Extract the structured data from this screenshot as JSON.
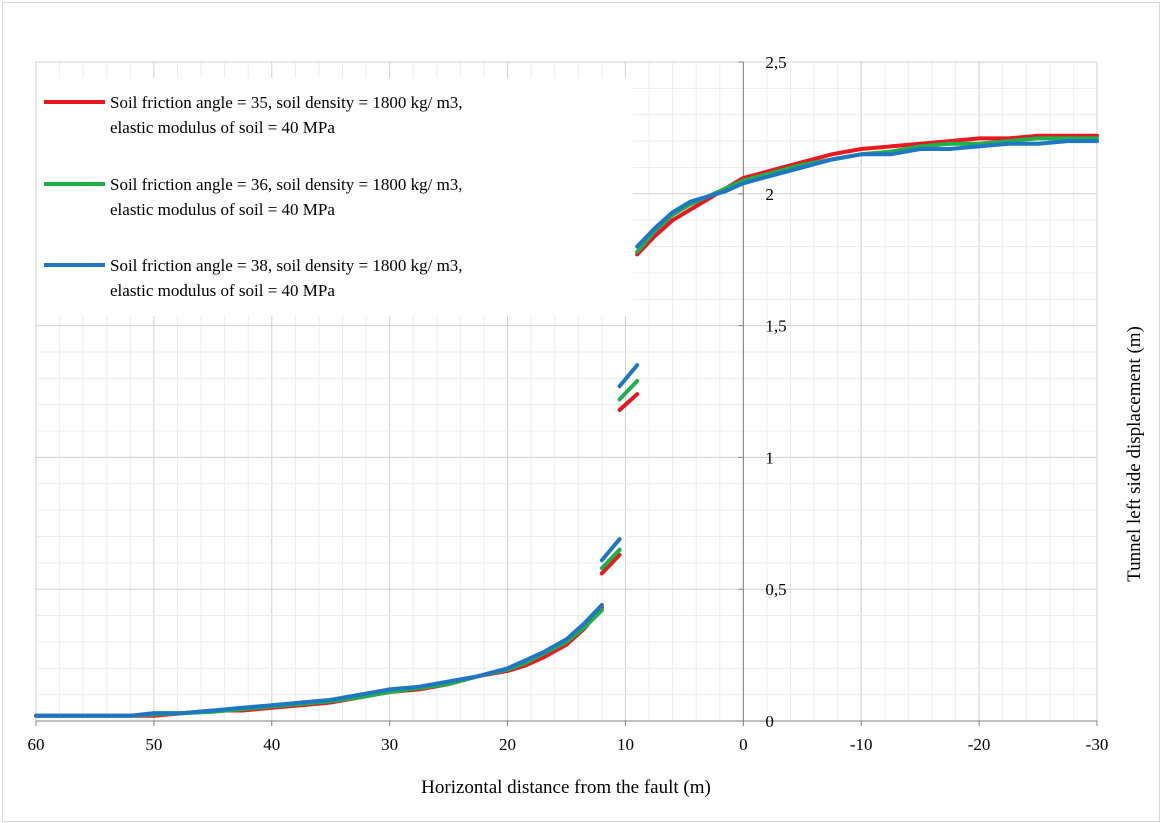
{
  "chart_data": {
    "type": "line",
    "title": "",
    "xlabel": "Horizontal distance from the fault (m)",
    "ylabel": "Tunnel left  side displacement  (m)",
    "xlim": [
      60,
      -30
    ],
    "ylim": [
      0,
      2.5
    ],
    "x_ticks": [
      "60",
      "50",
      "40",
      "30",
      "20",
      "10",
      "0",
      "-10",
      "-20",
      "-30"
    ],
    "y_ticks": [
      "0",
      "0,5",
      "1",
      "1,5",
      "2",
      "2,5"
    ],
    "grid": true,
    "legend_position": "top-left",
    "series": [
      {
        "name": "Soil friction angle = 35, soil density = 1800 kg/ m3, elastic modulus of soil = 40 MPa",
        "legend_lines": [
          "Soil friction angle = 35, soil density = 1800 kg/ m3,",
          "elastic modulus of soil = 40 MPa"
        ],
        "color": "#e8181e",
        "segments": [
          [
            [
              60,
              0.02
            ],
            [
              55,
              0.02
            ],
            [
              52,
              0.02
            ],
            [
              50,
              0.02
            ],
            [
              47.5,
              0.03
            ],
            [
              45,
              0.04
            ],
            [
              42.5,
              0.04
            ],
            [
              40,
              0.05
            ],
            [
              37.5,
              0.06
            ],
            [
              35,
              0.07
            ],
            [
              32.5,
              0.09
            ],
            [
              30,
              0.11
            ],
            [
              27.5,
              0.12
            ],
            [
              25,
              0.14
            ],
            [
              22.5,
              0.17
            ],
            [
              20,
              0.19
            ],
            [
              18.5,
              0.21
            ],
            [
              17,
              0.24
            ],
            [
              15,
              0.29
            ],
            [
              13.5,
              0.35
            ],
            [
              12,
              0.43
            ]
          ],
          [
            [
              12,
              0.56
            ],
            [
              10.5,
              0.63
            ]
          ],
          [
            [
              10.5,
              1.18
            ],
            [
              9,
              1.24
            ]
          ],
          [
            [
              9,
              1.77
            ],
            [
              7.5,
              1.84
            ],
            [
              6,
              1.9
            ],
            [
              4.5,
              1.94
            ],
            [
              3,
              1.98
            ],
            [
              1.5,
              2.02
            ],
            [
              0,
              2.06
            ],
            [
              -2.5,
              2.09
            ],
            [
              -5,
              2.12
            ],
            [
              -7.5,
              2.15
            ],
            [
              -10,
              2.17
            ],
            [
              -12.5,
              2.18
            ],
            [
              -15,
              2.19
            ],
            [
              -17.5,
              2.2
            ],
            [
              -20,
              2.21
            ],
            [
              -22.5,
              2.21
            ],
            [
              -25,
              2.22
            ],
            [
              -27.5,
              2.22
            ],
            [
              -30,
              2.22
            ]
          ]
        ]
      },
      {
        "name": "Soil friction angle = 36, soil density = 1800 kg/ m3, elastic modulus of soil = 40 MPa",
        "legend_lines": [
          "Soil friction angle = 36, soil density = 1800 kg/ m3,",
          "elastic modulus of soil = 40 MPa"
        ],
        "color": "#1fb04a",
        "segments": [
          [
            [
              60,
              0.02
            ],
            [
              55,
              0.02
            ],
            [
              52,
              0.02
            ],
            [
              50,
              0.025
            ],
            [
              47.5,
              0.03
            ],
            [
              45,
              0.035
            ],
            [
              42.5,
              0.045
            ],
            [
              40,
              0.055
            ],
            [
              37.5,
              0.065
            ],
            [
              35,
              0.075
            ],
            [
              32.5,
              0.09
            ],
            [
              30,
              0.11
            ],
            [
              27.5,
              0.125
            ],
            [
              25,
              0.14
            ],
            [
              22.5,
              0.17
            ],
            [
              20,
              0.195
            ],
            [
              18.5,
              0.22
            ],
            [
              17,
              0.255
            ],
            [
              15,
              0.3
            ],
            [
              13.5,
              0.355
            ],
            [
              12,
              0.42
            ]
          ],
          [
            [
              12,
              0.58
            ],
            [
              10.5,
              0.65
            ]
          ],
          [
            [
              10.5,
              1.22
            ],
            [
              9,
              1.29
            ]
          ],
          [
            [
              9,
              1.78
            ],
            [
              7.5,
              1.86
            ],
            [
              6,
              1.92
            ],
            [
              4.5,
              1.96
            ],
            [
              3,
              1.99
            ],
            [
              1.5,
              2.02
            ],
            [
              0,
              2.05
            ],
            [
              -2.5,
              2.08
            ],
            [
              -5,
              2.11
            ],
            [
              -7.5,
              2.13
            ],
            [
              -10,
              2.15
            ],
            [
              -12.5,
              2.16
            ],
            [
              -15,
              2.18
            ],
            [
              -17.5,
              2.19
            ],
            [
              -20,
              2.19
            ],
            [
              -22.5,
              2.2
            ],
            [
              -25,
              2.21
            ],
            [
              -27.5,
              2.21
            ],
            [
              -30,
              2.21
            ]
          ]
        ]
      },
      {
        "name": "Soil friction angle = 38, soil density = 1800 kg/ m3, elastic modulus of soil = 40 MPa",
        "legend_lines": [
          "Soil friction angle = 38, soil density = 1800 kg/ m3,",
          "elastic modulus of soil = 40 MPa"
        ],
        "color": "#1f77c4",
        "segments": [
          [
            [
              60,
              0.02
            ],
            [
              55,
              0.02
            ],
            [
              52,
              0.02
            ],
            [
              50,
              0.03
            ],
            [
              47.5,
              0.03
            ],
            [
              45,
              0.04
            ],
            [
              42.5,
              0.05
            ],
            [
              40,
              0.06
            ],
            [
              37.5,
              0.07
            ],
            [
              35,
              0.08
            ],
            [
              32.5,
              0.1
            ],
            [
              30,
              0.12
            ],
            [
              27.5,
              0.13
            ],
            [
              25,
              0.15
            ],
            [
              22.5,
              0.17
            ],
            [
              20,
              0.2
            ],
            [
              18.5,
              0.23
            ],
            [
              17,
              0.26
            ],
            [
              15,
              0.31
            ],
            [
              13.5,
              0.37
            ],
            [
              12,
              0.44
            ]
          ],
          [
            [
              12,
              0.61
            ],
            [
              10.5,
              0.69
            ]
          ],
          [
            [
              10.5,
              1.27
            ],
            [
              9,
              1.35
            ]
          ],
          [
            [
              9,
              1.8
            ],
            [
              7.5,
              1.87
            ],
            [
              6,
              1.93
            ],
            [
              4.5,
              1.97
            ],
            [
              3,
              1.99
            ],
            [
              1.5,
              2.01
            ],
            [
              0,
              2.04
            ],
            [
              -2.5,
              2.07
            ],
            [
              -5,
              2.1
            ],
            [
              -7.5,
              2.13
            ],
            [
              -10,
              2.15
            ],
            [
              -12.5,
              2.15
            ],
            [
              -15,
              2.17
            ],
            [
              -17.5,
              2.17
            ],
            [
              -20,
              2.18
            ],
            [
              -22.5,
              2.19
            ],
            [
              -25,
              2.19
            ],
            [
              -27.5,
              2.2
            ],
            [
              -30,
              2.2
            ]
          ]
        ]
      }
    ]
  }
}
